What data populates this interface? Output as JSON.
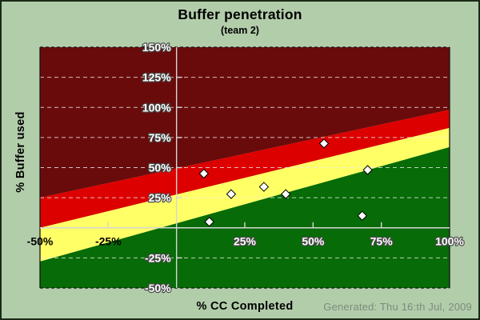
{
  "page": {
    "footer": "Generated: Thu 16:th Jul, 2009"
  },
  "chart_data": {
    "type": "scatter",
    "title": "Buffer penetration",
    "subtitle": "(team 2)",
    "xlabel": "% CC Completed",
    "ylabel": "% Buffer used",
    "xlim": [
      -50,
      100
    ],
    "ylim": [
      -50,
      150
    ],
    "grid": {
      "horizontal": "dashed",
      "vertical": "none"
    },
    "x_ticks": [
      {
        "value": -50,
        "label": "-50%",
        "contrast": "dark"
      },
      {
        "value": -25,
        "label": "-25%",
        "contrast": "dark"
      },
      {
        "value": 25,
        "label": "25%",
        "contrast": "light"
      },
      {
        "value": 50,
        "label": "50%",
        "contrast": "light"
      },
      {
        "value": 75,
        "label": "75%",
        "contrast": "light"
      },
      {
        "value": 100,
        "label": "100%",
        "contrast": "light"
      }
    ],
    "y_ticks": [
      {
        "value": 150,
        "label": "150%"
      },
      {
        "value": 125,
        "label": "125%"
      },
      {
        "value": 100,
        "label": "100%"
      },
      {
        "value": 75,
        "label": "75%"
      },
      {
        "value": 50,
        "label": "50%"
      },
      {
        "value": 25,
        "label": "25%"
      },
      {
        "value": -25,
        "label": "-25%"
      },
      {
        "value": -50,
        "label": "-50%"
      }
    ],
    "zones": [
      {
        "name": "dark-red-critical",
        "color": "#6a0b0b",
        "polygon": [
          [
            -50,
            25
          ],
          [
            -50,
            150
          ],
          [
            100,
            150
          ],
          [
            100,
            98
          ]
        ]
      },
      {
        "name": "red-act",
        "color": "#dd0000",
        "polygon": [
          [
            -50,
            0
          ],
          [
            -50,
            25
          ],
          [
            100,
            98
          ],
          [
            100,
            83
          ]
        ]
      },
      {
        "name": "yellow-watch",
        "color": "#ffff66",
        "polygon": [
          [
            -50,
            -28
          ],
          [
            -50,
            0
          ],
          [
            100,
            83
          ],
          [
            100,
            67
          ]
        ]
      },
      {
        "name": "green-safe",
        "color": "#076b07",
        "polygon": [
          [
            -50,
            -50
          ],
          [
            -50,
            -28
          ],
          [
            100,
            67
          ],
          [
            100,
            -50
          ]
        ]
      }
    ],
    "points": [
      {
        "x": 10,
        "y": 45
      },
      {
        "x": 12,
        "y": 5
      },
      {
        "x": 20,
        "y": 28
      },
      {
        "x": 32,
        "y": 34
      },
      {
        "x": 40,
        "y": 28
      },
      {
        "x": 54,
        "y": 70
      },
      {
        "x": 68,
        "y": 10
      },
      {
        "x": 70,
        "y": 48
      }
    ],
    "marker": {
      "shape": "diamond",
      "fill": "#ffffff",
      "stroke": "#000000",
      "size": 11
    },
    "colors": {
      "page_bg": "#b2cdaa",
      "outer_border": "#1b2a16",
      "plot_border": "#151515",
      "axis_line": "#d6d6d6",
      "grid_line": "#ececec",
      "tick_label_light": "#ffffff",
      "tick_label_outline": "#4a4a4a",
      "tick_label_dark": "#000000",
      "title_text": "#000000",
      "footer_text": "#7e8b7e"
    }
  }
}
